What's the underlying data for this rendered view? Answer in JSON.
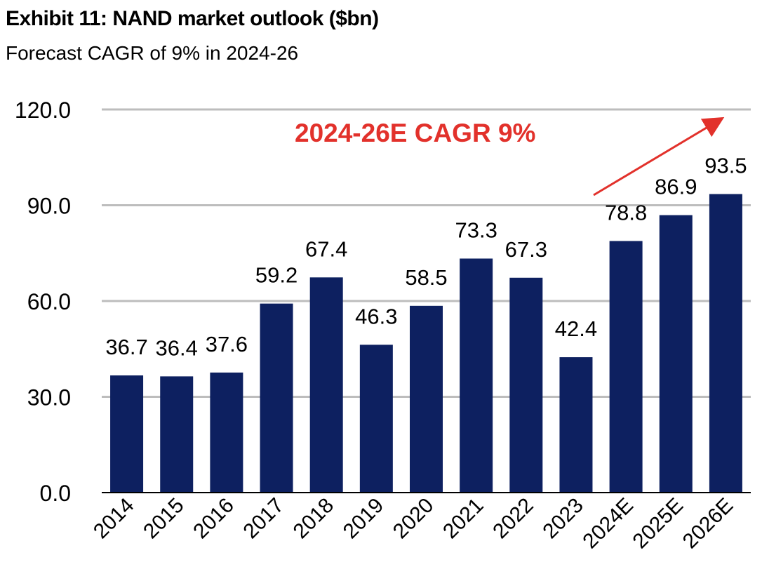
{
  "title": "Exhibit 11: NAND market outlook ($bn)",
  "subtitle": "Forecast CAGR of 9% in 2024-26",
  "colors": {
    "bar": "#0d2060",
    "grid": "#bdbdbd",
    "annotation": "#e2312b",
    "axis": "#000000"
  },
  "chart_data": {
    "type": "bar",
    "categories": [
      "2014",
      "2015",
      "2016",
      "2017",
      "2018",
      "2019",
      "2020",
      "2021",
      "2022",
      "2023",
      "2024E",
      "2025E",
      "2026E"
    ],
    "values": [
      36.7,
      36.4,
      37.6,
      59.2,
      67.4,
      46.3,
      58.5,
      73.3,
      67.3,
      42.4,
      78.8,
      86.9,
      93.5
    ],
    "value_labels": [
      "36.7",
      "36.4",
      "37.6",
      "59.2",
      "67.4",
      "46.3",
      "58.5",
      "73.3",
      "67.3",
      "42.4",
      "78.8",
      "86.9",
      "93.5"
    ],
    "yticks": [
      "0.0",
      "30.0",
      "60.0",
      "90.0",
      "120.0"
    ],
    "ylim": [
      0,
      120
    ],
    "grid": true,
    "annotation": "2024-26E CAGR 9%"
  }
}
